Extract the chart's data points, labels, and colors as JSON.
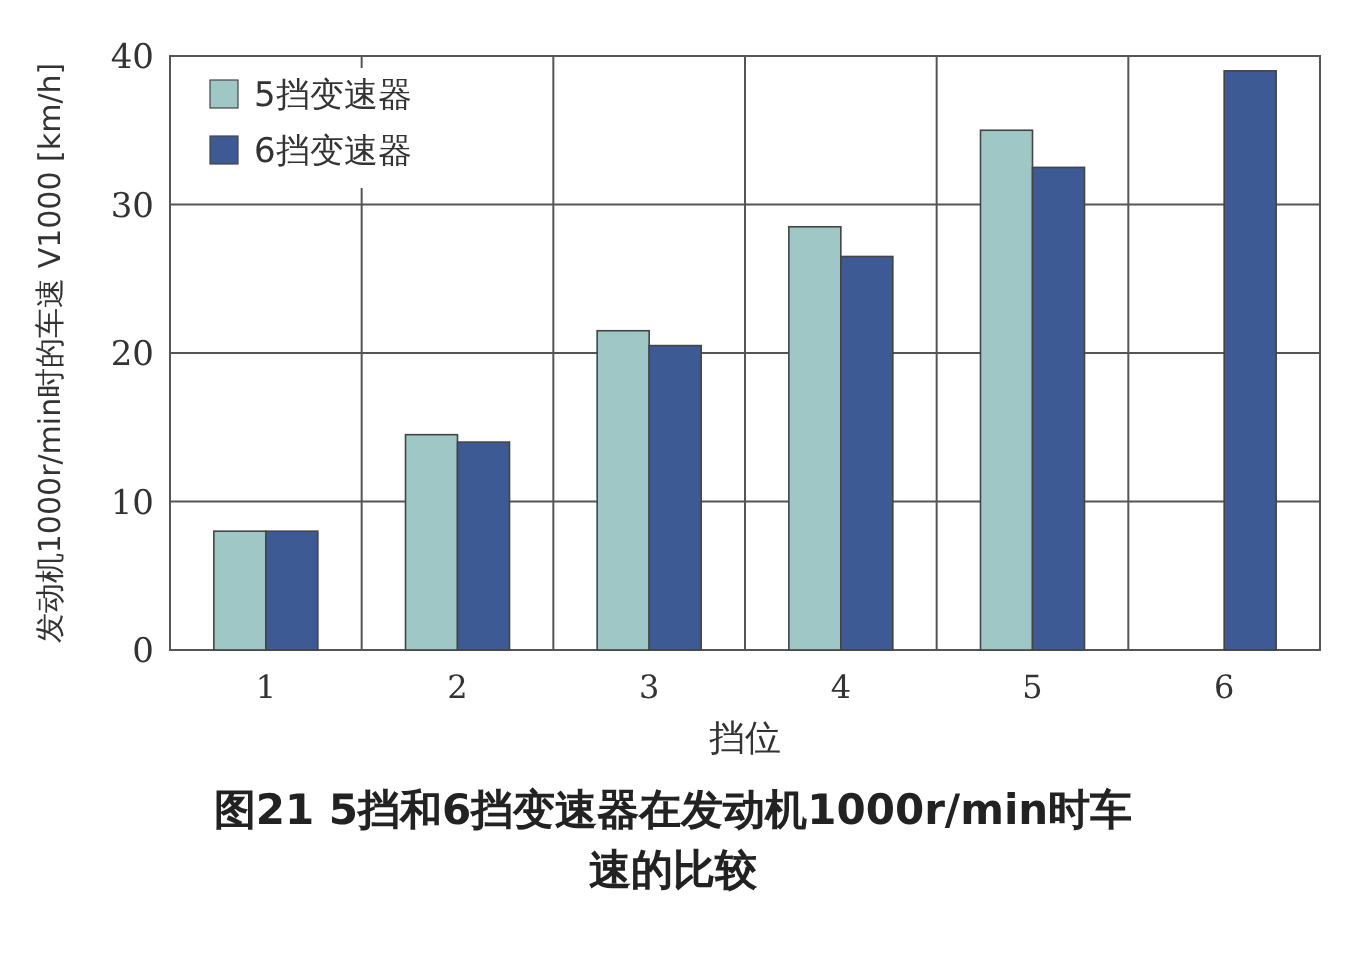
{
  "chart_data": {
    "type": "bar",
    "title": "图21 5挡和6挡变速器在发动机1000r/min时车速的比较",
    "xlabel": "挡位",
    "ylabel": "发动机1000r/min时的车速 V1000 [km/h]",
    "categories": [
      "1",
      "2",
      "3",
      "4",
      "5",
      "6"
    ],
    "series": [
      {
        "name": "5挡变速器",
        "color": "#9fc7c5",
        "values": [
          8,
          14.5,
          21.5,
          28.5,
          35,
          null
        ]
      },
      {
        "name": "6挡变速器",
        "color": "#3d5a94",
        "values": [
          8,
          14,
          20.5,
          26.5,
          32.5,
          39
        ]
      }
    ],
    "ylim": [
      0,
      40
    ],
    "yticks": [
      0,
      10,
      20,
      30,
      40
    ],
    "grid": true,
    "legend": "top left"
  }
}
